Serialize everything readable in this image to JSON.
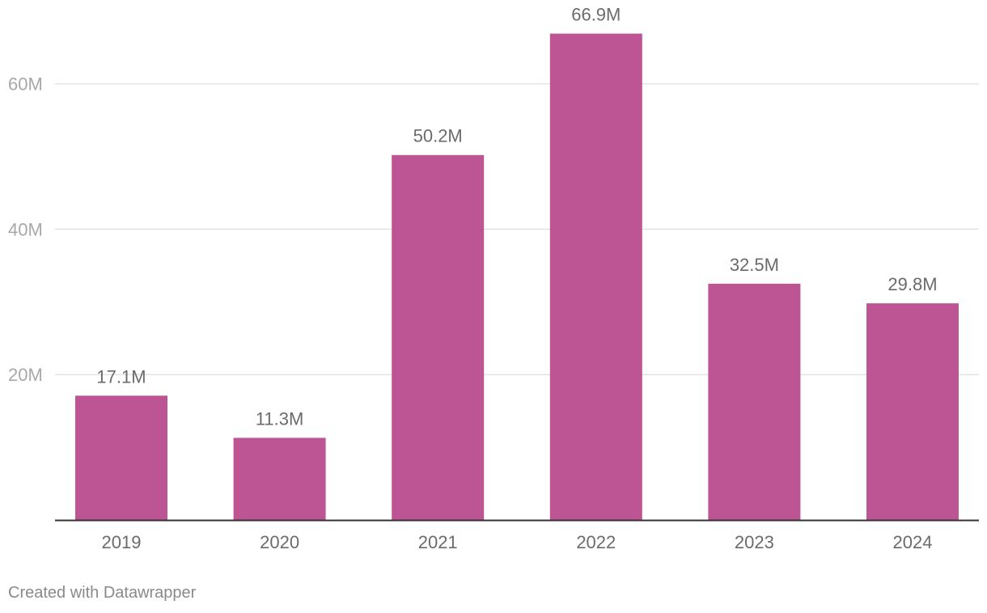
{
  "chart_data": {
    "type": "bar",
    "categories": [
      "2019",
      "2020",
      "2021",
      "2022",
      "2023",
      "2024"
    ],
    "values": [
      17.1,
      11.3,
      50.2,
      66.9,
      32.5,
      29.8
    ],
    "data_labels": [
      "17.1M",
      "11.3M",
      "50.2M",
      "66.9M",
      "32.5M",
      "29.8M"
    ],
    "yticks": [
      20,
      40,
      60
    ],
    "ytick_labels": [
      "20M",
      "40M",
      "60M"
    ],
    "ylim": [
      0,
      66.9
    ],
    "grid": true,
    "bar_color": "#bd5493"
  },
  "credit": "Created with Datawrapper"
}
